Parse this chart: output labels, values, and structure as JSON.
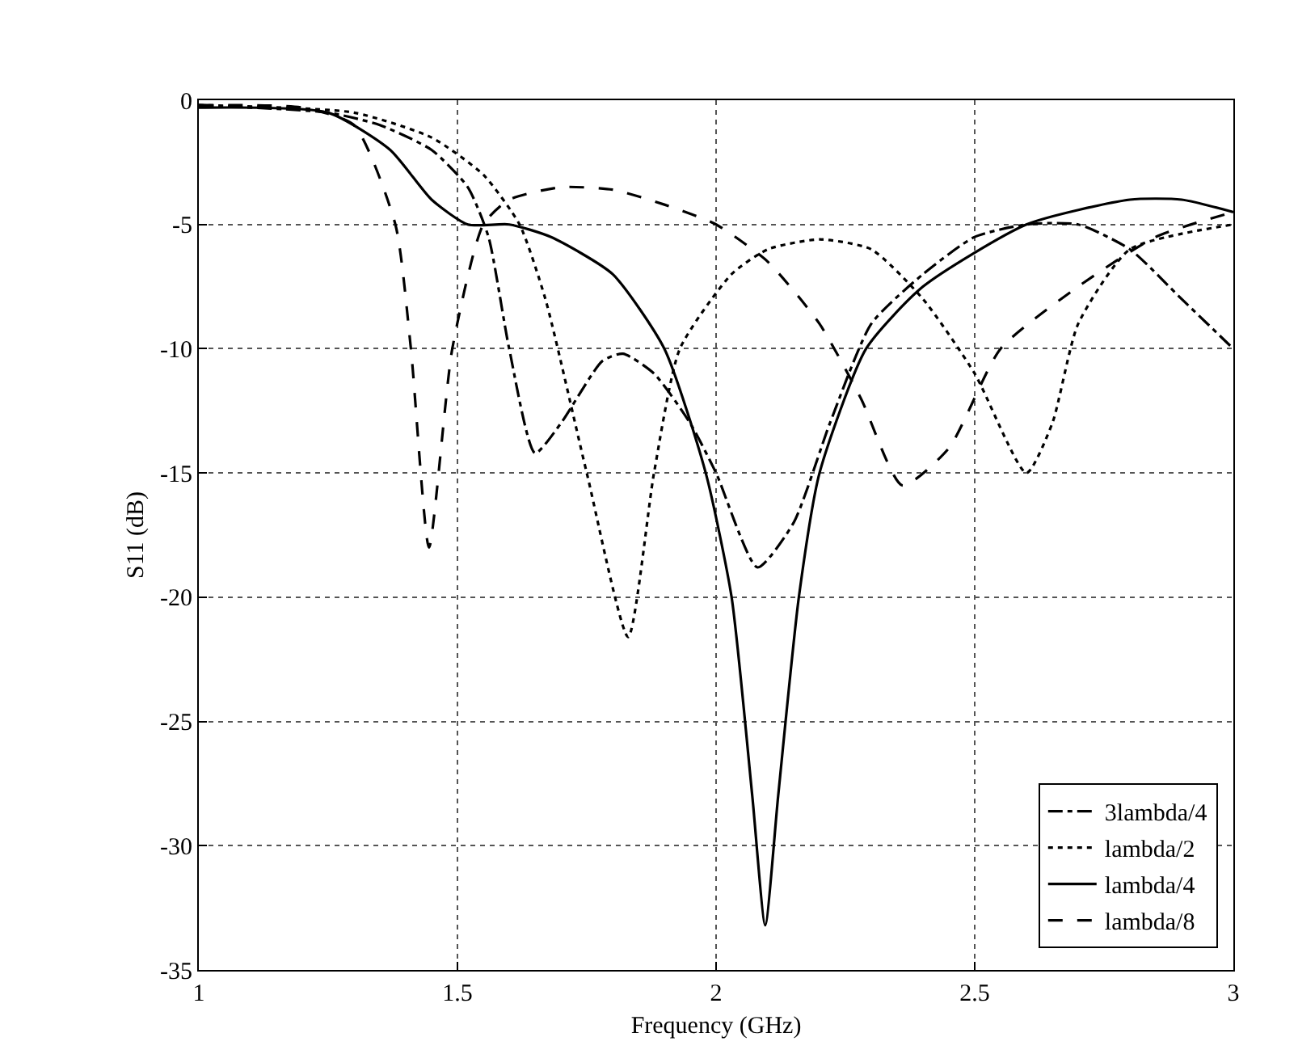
{
  "chart_data": {
    "type": "line",
    "xlabel": "Frequency (GHz)",
    "ylabel": "S11 (dB)",
    "xlim": [
      1,
      3
    ],
    "ylim": [
      -35,
      0
    ],
    "xticks": [
      1,
      1.5,
      2,
      2.5,
      3
    ],
    "yticks": [
      -35,
      -30,
      -25,
      -20,
      -15,
      -10,
      -5,
      0
    ],
    "grid": true,
    "legend": "bottom right",
    "marker": "none",
    "series": [
      {
        "name": "3lambda/4",
        "color": "#000000",
        "line_style": "dashdot",
        "x": [
          1.0,
          1.25,
          1.35,
          1.45,
          1.52,
          1.56,
          1.6,
          1.65,
          1.7,
          1.78,
          1.82,
          1.88,
          1.95,
          2.0,
          2.08,
          2.15,
          2.22,
          2.3,
          2.4,
          2.5,
          2.6,
          2.7,
          2.8,
          2.9,
          3.0
        ],
        "values": [
          -0.2,
          -0.5,
          -1,
          -2,
          -3.5,
          -5.5,
          -10,
          -14.2,
          -13,
          -10.5,
          -10.2,
          -11,
          -13,
          -15,
          -18.8,
          -17,
          -13,
          -9,
          -7,
          -5.5,
          -5,
          -5,
          -6,
          -8,
          -10
        ]
      },
      {
        "name": "lambda/2",
        "color": "#000000",
        "line_style": "dotted",
        "x": [
          1.0,
          1.3,
          1.45,
          1.55,
          1.62,
          1.67,
          1.75,
          1.83,
          1.88,
          1.93,
          2.03,
          2.1,
          2.2,
          2.3,
          2.4,
          2.5,
          2.6,
          2.65,
          2.7,
          2.8,
          3.0
        ],
        "values": [
          -0.2,
          -0.5,
          -1.5,
          -3,
          -5,
          -8,
          -15,
          -21.6,
          -15,
          -10,
          -7,
          -6,
          -5.6,
          -6,
          -8,
          -11,
          -15,
          -13,
          -9,
          -6,
          -5
        ]
      },
      {
        "name": "lambda/4",
        "color": "#000000",
        "line_style": "solid",
        "x": [
          1.0,
          1.25,
          1.37,
          1.45,
          1.52,
          1.6,
          1.68,
          1.8,
          1.9,
          1.98,
          2.03,
          2.07,
          2.095,
          2.12,
          2.16,
          2.2,
          2.29,
          2.4,
          2.6,
          2.8,
          2.9,
          3.0
        ],
        "values": [
          -0.3,
          -0.5,
          -2,
          -4,
          -5,
          -5,
          -5.5,
          -7,
          -10,
          -15,
          -20,
          -28,
          -33.2,
          -28,
          -20,
          -15,
          -10,
          -7.5,
          -5,
          -4,
          -4,
          -4.5
        ]
      },
      {
        "name": "lambda/8",
        "color": "#000000",
        "line_style": "dashed",
        "x": [
          1.0,
          1.2,
          1.3,
          1.38,
          1.41,
          1.445,
          1.49,
          1.55,
          1.6,
          1.7,
          1.8,
          1.9,
          2.0,
          2.1,
          2.2,
          2.28,
          2.36,
          2.45,
          2.55,
          2.7,
          2.85,
          3.0
        ],
        "values": [
          -0.2,
          -0.3,
          -1,
          -5,
          -10,
          -18,
          -10,
          -5,
          -4,
          -3.5,
          -3.6,
          -4.2,
          -5,
          -6.5,
          -9,
          -12,
          -15.5,
          -14,
          -10,
          -7.5,
          -5.5,
          -4.5
        ]
      }
    ]
  }
}
